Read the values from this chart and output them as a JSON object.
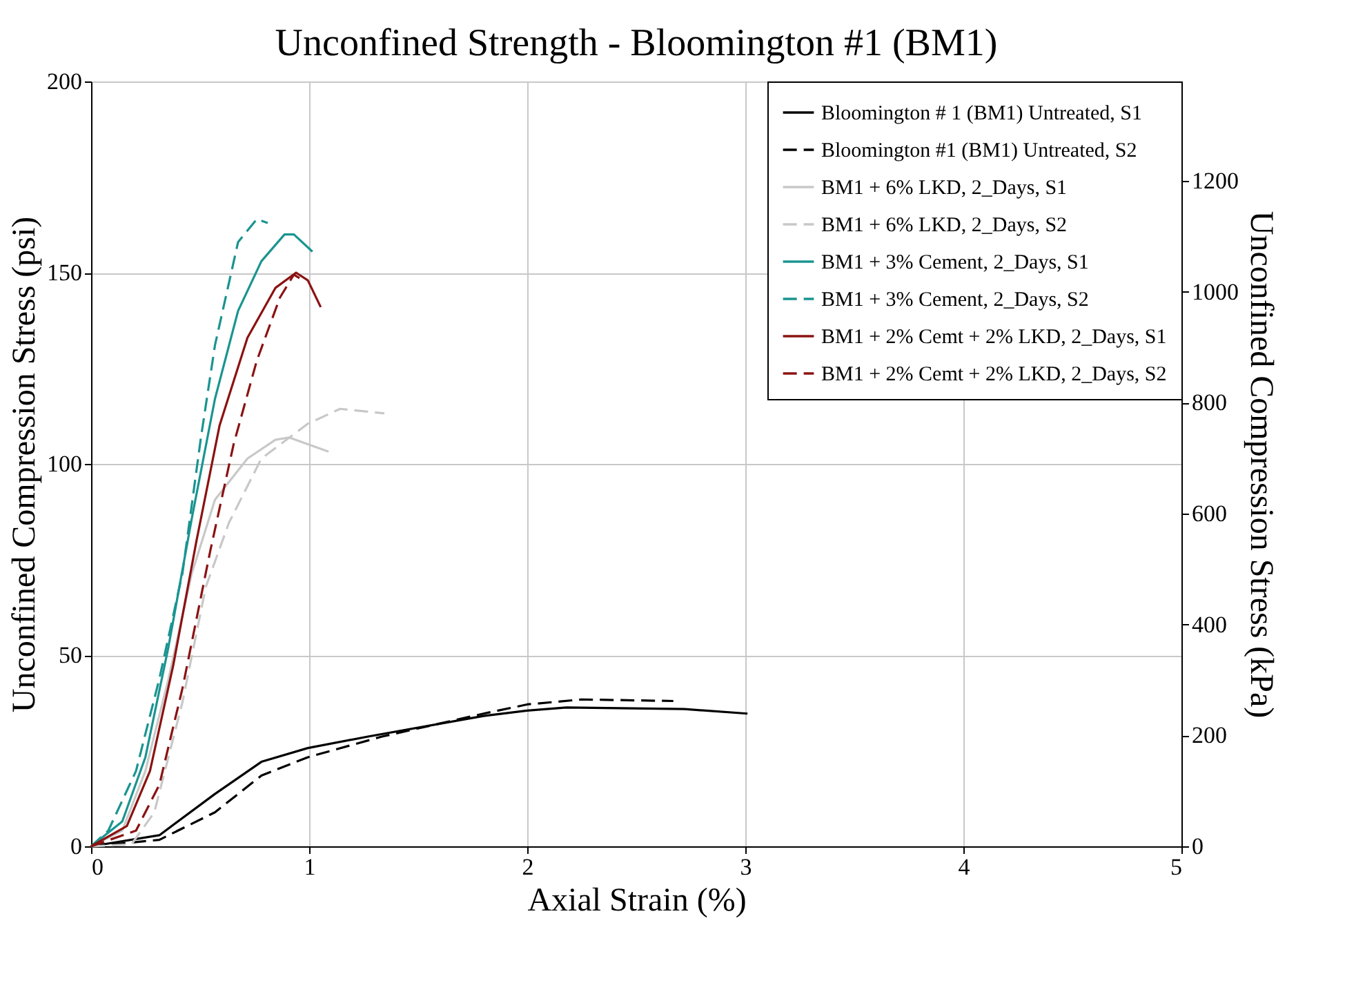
{
  "chart_data": {
    "type": "line",
    "title": "Unconfined Strength - Bloomington #1 (BM1)",
    "xlabel": "Axial Strain (%)",
    "ylabel": "Unconfined Compression Stress (psi)",
    "y2label": "Unconfined Compression Stress (kPa)",
    "xlim": [
      0,
      5
    ],
    "xticks": [
      0,
      1,
      2,
      3,
      4,
      5
    ],
    "ylim": [
      0,
      200
    ],
    "yticks": [
      0,
      50,
      100,
      150,
      200
    ],
    "y2lim": [
      0,
      1379
    ],
    "y2ticks": [
      0,
      200,
      400,
      600,
      800,
      1000,
      1200
    ],
    "grid": true,
    "legend": "top right",
    "marker": "none",
    "series": [
      {
        "name": "Bloomington # 1 (BM1) Untreated, S1",
        "color": "#000000",
        "line_style": "solid",
        "x": [
          0,
          0.313,
          0.568,
          0.781,
          0.994,
          1.27,
          1.8,
          2.0,
          2.18,
          2.72,
          3.01
        ],
        "values": [
          0,
          2.9,
          13.7,
          22.1,
          25.7,
          28.7,
          34.1,
          35.5,
          36.3,
          35.9,
          34.7
        ]
      },
      {
        "name": "Bloomington #1 (BM1) Untreated, S2",
        "color": "#000000",
        "line_style": "dashed",
        "x": [
          0,
          0.313,
          0.568,
          0.781,
          0.994,
          1.334,
          1.8,
          2.0,
          2.25,
          2.67
        ],
        "values": [
          0,
          1.7,
          8.9,
          18.5,
          23.3,
          28.7,
          34.7,
          37.1,
          38.4,
          38.0
        ]
      },
      {
        "name": "BM1 + 6% LKD, 2_Days, S1",
        "color": "#c8c8c8",
        "line_style": "solid",
        "x": [
          0,
          0.143,
          0.249,
          0.355,
          0.462,
          0.568,
          0.717,
          0.845,
          0.908,
          1.089
        ],
        "values": [
          0,
          4.1,
          19.7,
          43.8,
          71.4,
          90.6,
          101.4,
          106.3,
          106.9,
          103.2
        ]
      },
      {
        "name": "BM1 + 6% LKD, 2_Days, S2",
        "color": "#c8c8c8",
        "line_style": "dashed",
        "x": [
          0,
          0.185,
          0.29,
          0.419,
          0.526,
          0.632,
          0.781,
          0.994,
          1.142,
          1.345
        ],
        "values": [
          0,
          0.5,
          8.9,
          37.7,
          67.8,
          84.6,
          101.4,
          110.5,
          114.4,
          113.2
        ]
      },
      {
        "name": "BM1 + 3% Cement, 2_Days, S1",
        "color": "#1a9490",
        "line_style": "solid",
        "x": [
          0,
          0.143,
          0.249,
          0.355,
          0.462,
          0.568,
          0.674,
          0.781,
          0.887,
          0.93,
          1.015
        ],
        "values": [
          0,
          6.5,
          23.3,
          52.2,
          85.8,
          117,
          140,
          153,
          160,
          160,
          155.5
        ]
      },
      {
        "name": "BM1 + 3% Cement, 2_Days, S2",
        "color": "#1a9490",
        "line_style": "dashed",
        "x": [
          0,
          0.079,
          0.206,
          0.313,
          0.419,
          0.504,
          0.568,
          0.674,
          0.76,
          0.81
        ],
        "values": [
          0,
          4.1,
          19.7,
          43.8,
          71.4,
          107,
          131,
          158,
          164,
          163
        ]
      },
      {
        "name": "BM1 + 2% Cemt + 2% LKD, 2_Days, S1",
        "color": "#8b1212",
        "line_style": "solid",
        "x": [
          0,
          0.164,
          0.27,
          0.377,
          0.483,
          0.589,
          0.717,
          0.845,
          0.94,
          0.994,
          1.053
        ],
        "values": [
          0,
          5.3,
          19.7,
          47.4,
          79.8,
          110,
          133,
          146,
          150,
          148,
          141
        ]
      },
      {
        "name": "BM1 + 2% Cemt + 2% LKD, 2_Days, S2",
        "color": "#8b1212",
        "line_style": "dashed",
        "x": [
          0,
          0.206,
          0.313,
          0.419,
          0.547,
          0.653,
          0.76,
          0.866,
          0.93,
          0.972
        ],
        "values": [
          0,
          4.1,
          16.1,
          41.3,
          77.4,
          105,
          127,
          143.5,
          149.5,
          148
        ]
      }
    ]
  }
}
